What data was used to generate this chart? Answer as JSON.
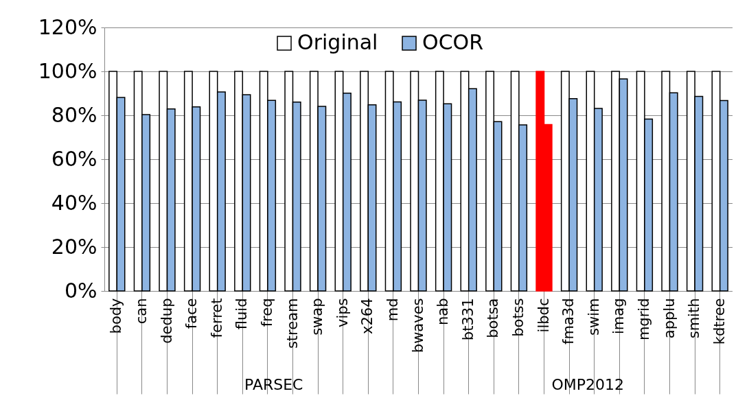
{
  "chart_data": {
    "type": "bar",
    "categories": [
      "body",
      "can",
      "dedup",
      "face",
      "ferret",
      "fluid",
      "freq",
      "stream",
      "swap",
      "vips",
      "x264",
      "md",
      "bwaves",
      "nab",
      "bt331",
      "botsa",
      "botss",
      "ilbdc",
      "fma3d",
      "swim",
      "imag",
      "mgrid",
      "applu",
      "smith",
      "kdtree"
    ],
    "series": [
      {
        "name": "Original",
        "color": "#ffffff",
        "colors": [
          "#ffffff",
          "#ffffff",
          "#ffffff",
          "#ffffff",
          "#ffffff",
          "#ffffff",
          "#ffffff",
          "#ffffff",
          "#ffffff",
          "#ffffff",
          "#ffffff",
          "#ffffff",
          "#ffffff",
          "#ffffff",
          "#ffffff",
          "#ffffff",
          "#ffffff",
          "#ff0000",
          "#ffffff",
          "#ffffff",
          "#ffffff",
          "#ffffff",
          "#ffffff",
          "#ffffff",
          "#ffffff"
        ],
        "values": [
          100,
          100,
          100,
          100,
          100,
          100,
          100,
          100,
          100,
          100,
          100,
          100,
          100,
          100,
          100,
          100,
          100,
          100,
          100,
          100,
          100,
          100,
          100,
          100,
          100
        ]
      },
      {
        "name": "OCOR",
        "color": "#8db4e2",
        "colors": [
          "#8db4e2",
          "#8db4e2",
          "#8db4e2",
          "#8db4e2",
          "#8db4e2",
          "#8db4e2",
          "#8db4e2",
          "#8db4e2",
          "#8db4e2",
          "#8db4e2",
          "#8db4e2",
          "#8db4e2",
          "#8db4e2",
          "#8db4e2",
          "#8db4e2",
          "#8db4e2",
          "#8db4e2",
          "#ff0000",
          "#8db4e2",
          "#8db4e2",
          "#8db4e2",
          "#8db4e2",
          "#8db4e2",
          "#8db4e2",
          "#8db4e2"
        ],
        "values": [
          88.1,
          80.3,
          82.9,
          83.8,
          90.6,
          89.4,
          86.8,
          86.0,
          84.1,
          90.1,
          84.8,
          86.1,
          86.9,
          85.2,
          92.1,
          77.1,
          75.6,
          75.8,
          87.6,
          83.1,
          96.6,
          78.3,
          90.2,
          88.6,
          86.7
        ]
      }
    ],
    "ylim": [
      0,
      120
    ],
    "yticks": [
      {
        "value": 0,
        "label": "0%"
      },
      {
        "value": 20,
        "label": "20%"
      },
      {
        "value": 40,
        "label": "40%"
      },
      {
        "value": 60,
        "label": "60%"
      },
      {
        "value": 80,
        "label": "80%"
      },
      {
        "value": 100,
        "label": "100%"
      },
      {
        "value": 120,
        "label": "120%"
      }
    ],
    "grid": "y",
    "legend": "top",
    "annotations": [
      "PARSEC",
      "OMP2012"
    ]
  }
}
